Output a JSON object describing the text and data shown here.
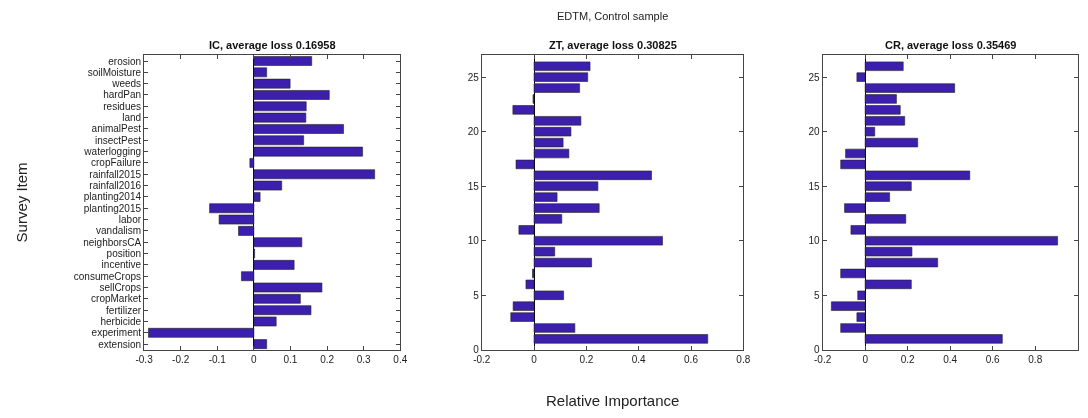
{
  "chart_data": [
    {
      "type": "bar",
      "orientation": "horizontal",
      "title": "IC, average loss 0.16958",
      "ylabel": "Survey Item",
      "color": "#3d1fae",
      "categories": [
        "erosion",
        "soilMoisture",
        "weeds",
        "hardPan",
        "residues",
        "land",
        "animalPest",
        "insectPest",
        "waterlogging",
        "cropFailure",
        "rainfall2015",
        "rainfall2016",
        "planting2014",
        "planting2015",
        "labor",
        "vandalism",
        "neighborsCA",
        "position",
        "incentive",
        "consumeCrops",
        "sellCrops",
        "cropMarket",
        "fertilizer",
        "herbicide",
        "experiment",
        "extension"
      ],
      "values": [
        0.158,
        0.035,
        0.099,
        0.206,
        0.143,
        0.142,
        0.245,
        0.136,
        0.297,
        -0.011,
        0.33,
        0.076,
        0.017,
        -0.121,
        -0.095,
        -0.042,
        0.131,
        0.002,
        0.11,
        -0.034,
        0.186,
        0.127,
        0.156,
        0.061,
        -0.288,
        0.035
      ],
      "xlim": [
        -0.3,
        0.4
      ],
      "xticks": [
        -0.3,
        -0.2,
        -0.1,
        0,
        0.1,
        0.2,
        0.3,
        0.4
      ]
    },
    {
      "type": "bar",
      "orientation": "horizontal",
      "title": "ZT, average loss 0.30825",
      "xlabel": "Relative Importance",
      "annotations": [
        "EDTM, Control sample"
      ],
      "color": "#3d1fae",
      "x": [
        26,
        25,
        24,
        23,
        22,
        21,
        20,
        19,
        18,
        17,
        16,
        15,
        14,
        13,
        12,
        11,
        10,
        9,
        8,
        7,
        6,
        5,
        4,
        3,
        2,
        1
      ],
      "values": [
        0.214,
        0.205,
        0.174,
        -0.004,
        -0.081,
        0.179,
        0.141,
        0.111,
        0.133,
        -0.069,
        0.449,
        0.244,
        0.088,
        0.249,
        0.106,
        -0.058,
        0.491,
        0.079,
        0.22,
        -0.006,
        -0.031,
        0.113,
        -0.08,
        -0.089,
        0.156,
        0.664
      ],
      "xlim": [
        -0.2,
        0.8
      ],
      "xticks": [
        -0.2,
        0,
        0.2,
        0.4,
        0.6,
        0.8
      ],
      "ylim": [
        0,
        27
      ],
      "yticks": [
        0,
        5,
        10,
        15,
        20,
        25
      ]
    },
    {
      "type": "bar",
      "orientation": "horizontal",
      "title": "CR, average loss 0.35469",
      "color": "#3d1fae",
      "x": [
        26,
        25,
        24,
        23,
        22,
        21,
        20,
        19,
        18,
        17,
        16,
        15,
        14,
        13,
        12,
        11,
        10,
        9,
        8,
        7,
        6,
        5,
        4,
        3,
        2,
        1
      ],
      "values": [
        0.179,
        -0.039,
        0.421,
        0.147,
        0.165,
        0.186,
        0.045,
        0.247,
        -0.092,
        -0.115,
        0.492,
        0.217,
        0.115,
        -0.097,
        0.191,
        -0.067,
        0.905,
        0.22,
        0.341,
        -0.115,
        0.217,
        -0.035,
        -0.159,
        -0.039,
        -0.115,
        0.645
      ],
      "xlim": [
        -0.2,
        1.0
      ],
      "xticks": [
        -0.2,
        0,
        0.2,
        0.4,
        0.6,
        0.8
      ],
      "ylim": [
        0,
        27
      ],
      "yticks": [
        0,
        5,
        10,
        15,
        20,
        25
      ]
    }
  ]
}
